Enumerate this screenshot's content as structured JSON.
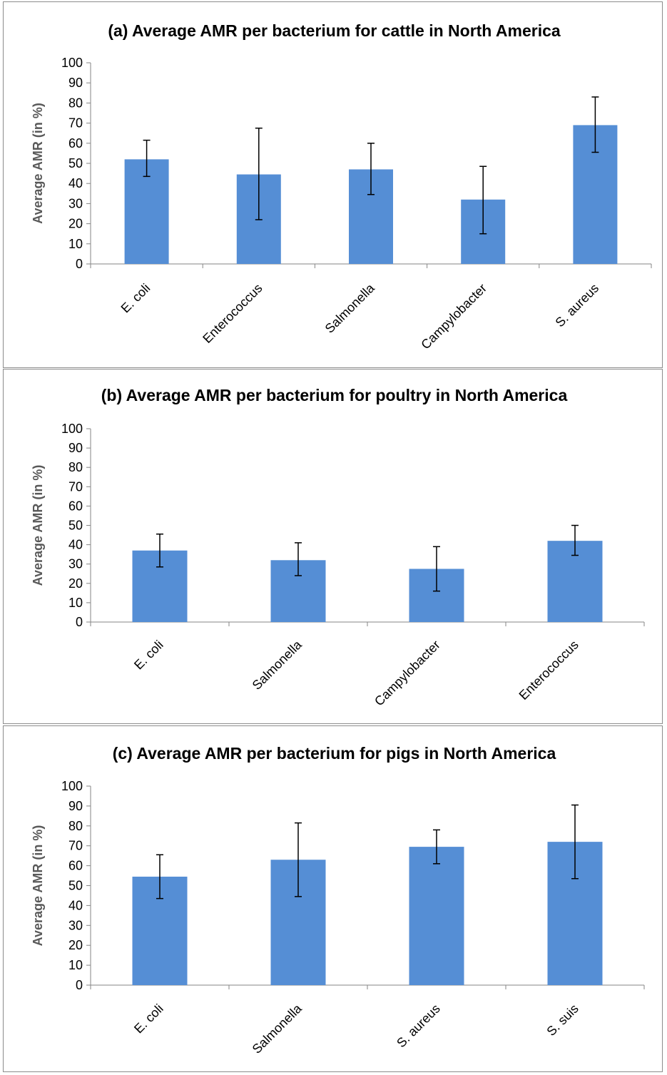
{
  "chart_data": [
    {
      "type": "bar",
      "title": "(a) Average AMR per bacterium for cattle in North America",
      "xlabel": "",
      "ylabel": "Average AMR (in %)",
      "ylim": [
        0,
        100
      ],
      "yticks": [
        0,
        10,
        20,
        30,
        40,
        50,
        60,
        70,
        80,
        90,
        100
      ],
      "categories": [
        "E. coli",
        "Enterococcus",
        "Salmonella",
        "Campylobacter",
        "S. aureus"
      ],
      "values": [
        52,
        44.5,
        47,
        32,
        69
      ],
      "error_low": [
        43.5,
        22,
        34.5,
        15,
        55.5
      ],
      "error_high": [
        61.5,
        67.5,
        60,
        48.5,
        83
      ],
      "bar_color": "#558ed5",
      "grid": false
    },
    {
      "type": "bar",
      "title": "(b) Average AMR per bacterium for poultry in North America",
      "xlabel": "",
      "ylabel": "Average AMR (in %)",
      "ylim": [
        0,
        100
      ],
      "yticks": [
        0,
        10,
        20,
        30,
        40,
        50,
        60,
        70,
        80,
        90,
        100
      ],
      "categories": [
        "E. coli",
        "Salmonella",
        "Campylobacter",
        "Enterococcus"
      ],
      "values": [
        37,
        32,
        27.5,
        42
      ],
      "error_low": [
        28.5,
        24,
        16,
        34.5
      ],
      "error_high": [
        45.5,
        41,
        39,
        50
      ],
      "bar_color": "#558ed5",
      "grid": false
    },
    {
      "type": "bar",
      "title": "(c) Average AMR per bacterium for pigs in North America",
      "xlabel": "",
      "ylabel": "Average AMR (in %)",
      "ylim": [
        0,
        100
      ],
      "yticks": [
        0,
        10,
        20,
        30,
        40,
        50,
        60,
        70,
        80,
        90,
        100
      ],
      "categories": [
        "E. coli",
        "Salmonella",
        "S. aureus",
        "S. suis"
      ],
      "values": [
        54.5,
        63,
        69.5,
        72
      ],
      "error_low": [
        43.5,
        44.5,
        61,
        53.5
      ],
      "error_high": [
        65.5,
        81.5,
        78,
        90.5
      ],
      "bar_color": "#558ed5",
      "grid": false
    }
  ]
}
